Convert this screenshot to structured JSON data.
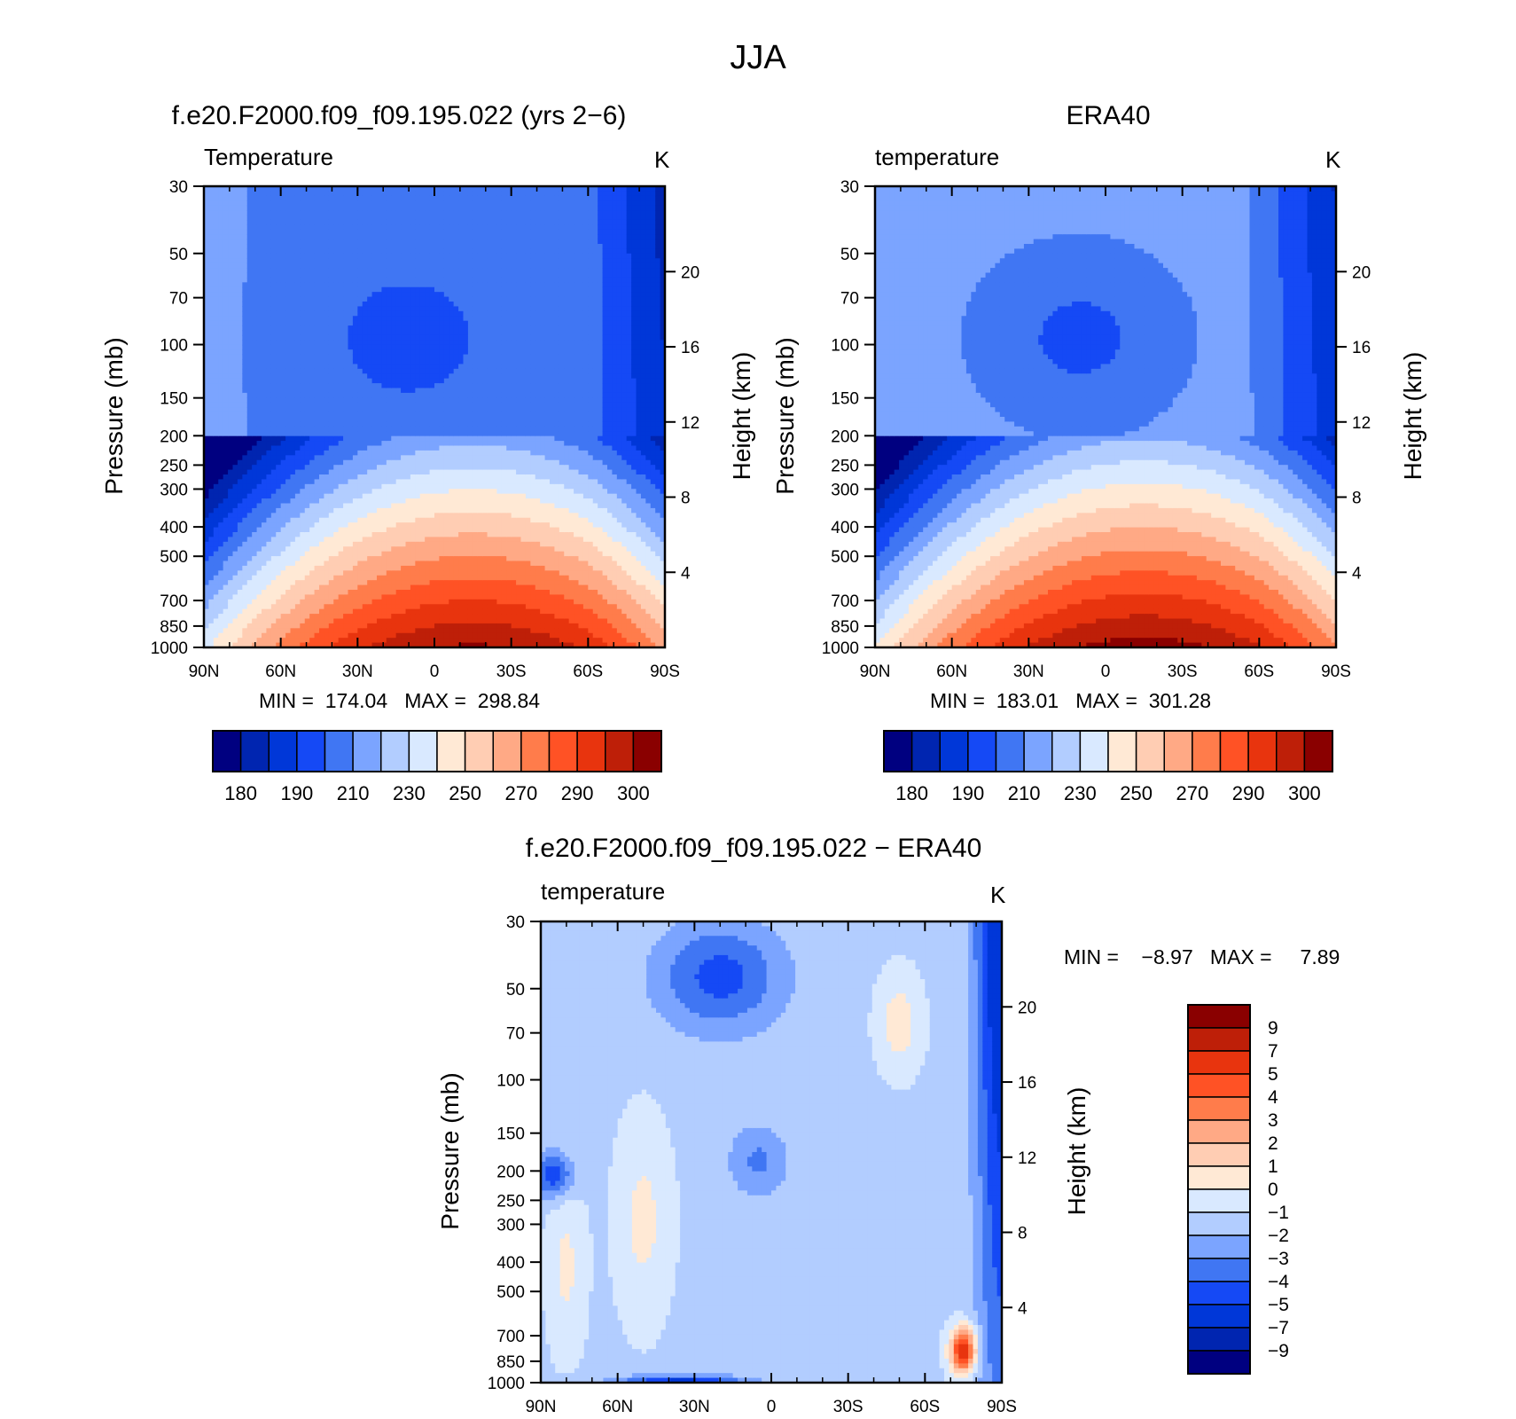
{
  "figure_title": "JJA",
  "chart_data": [
    {
      "type": "contour",
      "title": "f.e20.F2000.f09_f09.195.022 (yrs 2−6)",
      "variable_label": "Temperature",
      "units": "K",
      "xlabel": "",
      "x_ticks": [
        "90N",
        "60N",
        "30N",
        "0",
        "30S",
        "60S",
        "90S"
      ],
      "ylabel": "Pressure (mb)",
      "y_ticks": [
        "30",
        "50",
        "70",
        "100",
        "150",
        "200",
        "250",
        "300",
        "400",
        "500",
        "700",
        "850",
        "1000"
      ],
      "y_ticks_values": [
        30,
        50,
        70,
        100,
        150,
        200,
        250,
        300,
        400,
        500,
        700,
        850,
        1000
      ],
      "y2label": "Height (km)",
      "y2_ticks": [
        "20",
        "16",
        "12",
        "8",
        "4"
      ],
      "y2_tick_values": [
        20,
        16,
        12,
        8,
        4
      ],
      "stats_text": "MIN =  174.04   MAX =  298.84",
      "min": 174.04,
      "max": 298.84,
      "colorbar": {
        "orientation": "horizontal",
        "levels": [
          180,
          190,
          200,
          210,
          220,
          230,
          240,
          250,
          260,
          270,
          280,
          290,
          300
        ],
        "tick_labels": [
          "180",
          "190",
          "210",
          "230",
          "250",
          "270",
          "290",
          "300"
        ],
        "colors": [
          "#000080",
          "#0025B0",
          "#0037D8",
          "#1549F5",
          "#4076F3",
          "#7BA4FF",
          "#B2CDFF",
          "#D9E9FF",
          "#FFE9D5",
          "#FFCDB3",
          "#FFA985",
          "#FF7C4B",
          "#FF5225",
          "#E8340E",
          "#BE1F08",
          "#8A0000"
        ]
      }
    },
    {
      "type": "contour",
      "title": "ERA40",
      "variable_label": "temperature",
      "units": "K",
      "x_ticks": [
        "90N",
        "60N",
        "30N",
        "0",
        "30S",
        "60S",
        "90S"
      ],
      "ylabel": "Pressure (mb)",
      "y_ticks": [
        "30",
        "50",
        "70",
        "100",
        "150",
        "200",
        "250",
        "300",
        "400",
        "500",
        "700",
        "850",
        "1000"
      ],
      "y2label": "Height (km)",
      "y2_ticks": [
        "20",
        "16",
        "12",
        "8",
        "4"
      ],
      "stats_text": "MIN =  183.01   MAX =  301.28",
      "min": 183.01,
      "max": 301.28,
      "colorbar": {
        "orientation": "horizontal",
        "levels": [
          180,
          190,
          200,
          210,
          220,
          230,
          240,
          250,
          260,
          270,
          280,
          290,
          300
        ],
        "tick_labels": [
          "180",
          "190",
          "210",
          "230",
          "250",
          "270",
          "290",
          "300"
        ],
        "colors": [
          "#000080",
          "#0025B0",
          "#0037D8",
          "#1549F5",
          "#4076F3",
          "#7BA4FF",
          "#B2CDFF",
          "#D9E9FF",
          "#FFE9D5",
          "#FFCDB3",
          "#FFA985",
          "#FF7C4B",
          "#FF5225",
          "#E8340E",
          "#BE1F08",
          "#8A0000"
        ]
      }
    },
    {
      "type": "contour",
      "title": "f.e20.F2000.f09_f09.195.022 − ERA40",
      "variable_label": "temperature",
      "units": "K",
      "x_ticks": [
        "90N",
        "60N",
        "30N",
        "0",
        "30S",
        "60S",
        "90S"
      ],
      "ylabel": "Pressure (mb)",
      "y_ticks": [
        "30",
        "50",
        "70",
        "100",
        "150",
        "200",
        "250",
        "300",
        "400",
        "500",
        "700",
        "850",
        "1000"
      ],
      "y2label": "Height (km)",
      "y2_ticks": [
        "20",
        "16",
        "12",
        "8",
        "4"
      ],
      "stats_text": "MIN =    −8.97   MAX =     7.89",
      "min": -8.97,
      "max": 7.89,
      "colorbar": {
        "orientation": "vertical",
        "tick_labels": [
          "9",
          "7",
          "5",
          "4",
          "3",
          "2",
          "1",
          "0",
          "−1",
          "−2",
          "−3",
          "−4",
          "−5",
          "−7",
          "−9"
        ],
        "levels": [
          9,
          7,
          5,
          4,
          3,
          2,
          1,
          0,
          -1,
          -2,
          -3,
          -4,
          -5,
          -7,
          -9
        ],
        "colors": [
          "#8A0000",
          "#BE1F08",
          "#E8340E",
          "#FF5225",
          "#FF7C4B",
          "#FFA985",
          "#FFCDB3",
          "#FFE9D5",
          "#D9E9FF",
          "#B2CDFF",
          "#7BA4FF",
          "#4076F3",
          "#1549F5",
          "#0037D8",
          "#0025B0",
          "#000080"
        ]
      }
    }
  ]
}
